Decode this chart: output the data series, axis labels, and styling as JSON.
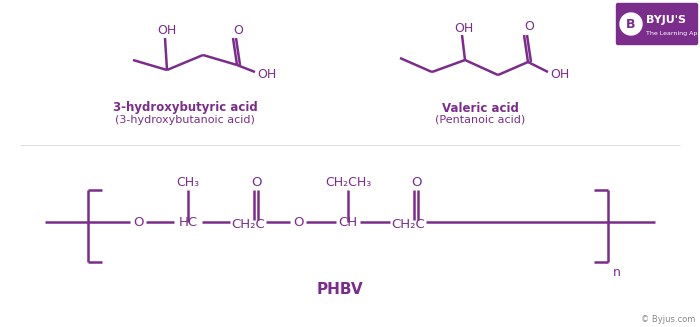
{
  "bg_color": "#ffffff",
  "purple": "#7B2D8B",
  "figsize": [
    7.0,
    3.27
  ],
  "dpi": 100,
  "compound1_bold": "3-hydroxybutyric acid",
  "compound1_normal": "(3-hydroxybutanoic acid)",
  "compound2_bold": "Valeric acid",
  "compound2_normal": "(Pentanoic acid)",
  "phbv_label": "PHBV",
  "n_label": "n",
  "copyright": "© Byjus.com",
  "byjus_text": "BYJU'S",
  "byjus_sub": "The Learning App"
}
